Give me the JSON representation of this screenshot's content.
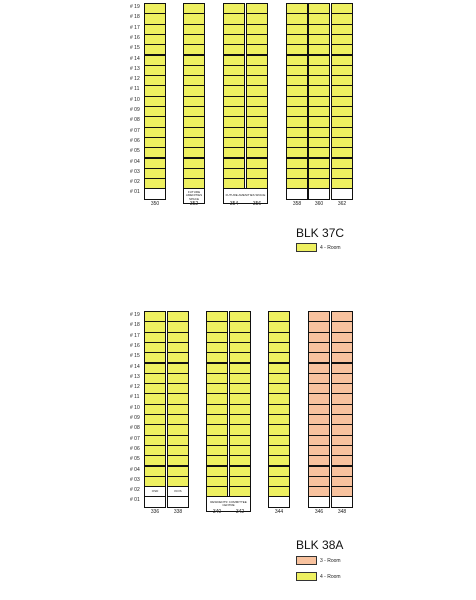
{
  "colors": {
    "four_room": "#eef060",
    "three_room": "#f8c29e",
    "vacant": "#ffffff",
    "border": "#111111"
  },
  "blocks": [
    {
      "name": "BLK 37C",
      "levels": [
        "# 19",
        "# 18",
        "# 17",
        "# 16",
        "# 15",
        "# 14",
        "# 13",
        "# 12",
        "# 11",
        "# 10",
        "# 09",
        "# 08",
        "# 07",
        "# 06",
        "# 05",
        "# 04",
        "# 03",
        "# 02",
        "# 01"
      ],
      "units": [
        "350",
        "352",
        "354",
        "356",
        "358",
        "360",
        "362"
      ],
      "notes": [
        {
          "unit": "352",
          "text": "FUTURE AMENITIES SPACE"
        },
        {
          "unit": "354-356",
          "text": "FUTURE AMENITIES SPACE"
        }
      ],
      "legend": [
        {
          "label": "4 - Room",
          "color": "#eef060"
        }
      ]
    },
    {
      "name": "BLK 38A",
      "levels": [
        "# 19",
        "# 18",
        "# 17",
        "# 16",
        "# 15",
        "# 14",
        "# 13",
        "# 12",
        "# 11",
        "# 10",
        "# 09",
        "# 08",
        "# 07",
        "# 06",
        "# 05",
        "# 04",
        "# 03",
        "# 02",
        "# 01"
      ],
      "units": [
        "336",
        "338",
        "340",
        "342",
        "344",
        "346",
        "348"
      ],
      "notes": [
        {
          "unit": "336",
          "text": "OSD"
        },
        {
          "unit": "338",
          "text": "KIOS"
        },
        {
          "unit": "340-342",
          "text": "RESIDENTS' COMMITTEE CENTRE"
        }
      ],
      "legend": [
        {
          "label": "3 - Room",
          "color": "#f8c29e"
        },
        {
          "label": "4 - Room",
          "color": "#eef060"
        }
      ]
    }
  ]
}
